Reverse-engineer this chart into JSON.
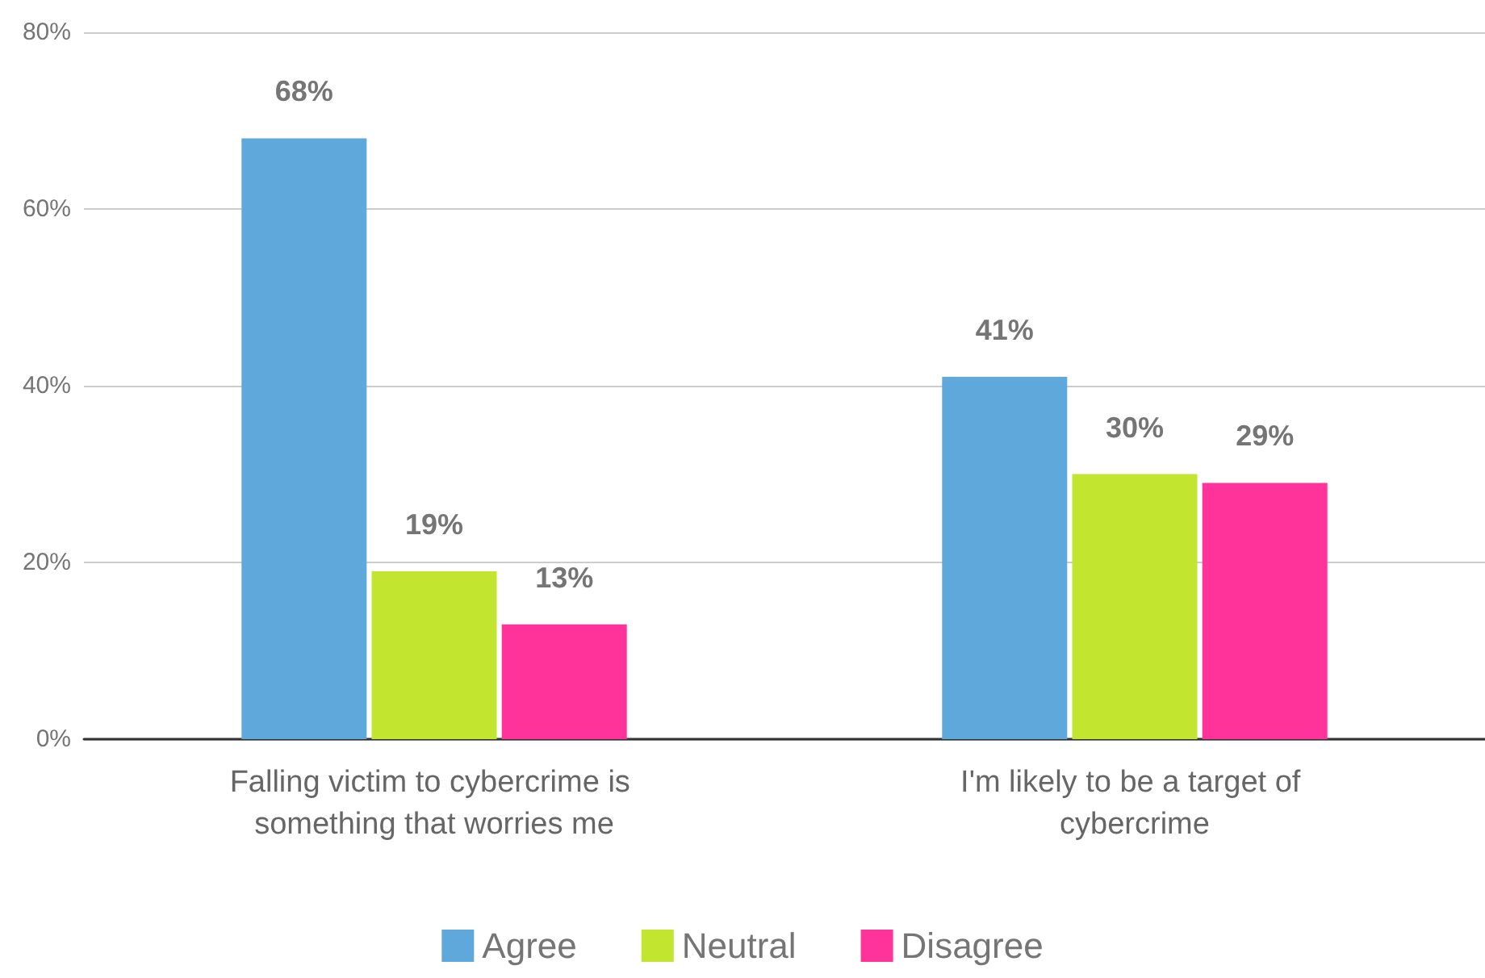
{
  "chart_data": {
    "type": "bar",
    "categories": [
      "Falling victim to cybercrime is something that worries me",
      "I'm likely to be a target of cybercrime"
    ],
    "series": [
      {
        "name": "Agree",
        "color": "#5ea8dc",
        "values": [
          68,
          41
        ],
        "value_labels": [
          "68%",
          "41%"
        ]
      },
      {
        "name": "Neutral",
        "color": "#c2e530",
        "values": [
          19,
          30
        ],
        "value_labels": [
          "19%",
          "30%"
        ]
      },
      {
        "name": "Disagree",
        "color": "#ff3399",
        "values": [
          13,
          29
        ],
        "value_labels": [
          "13%",
          "29%"
        ]
      }
    ],
    "ylim": [
      0,
      80
    ],
    "yticks": [
      {
        "value": 0,
        "label": "0%"
      },
      {
        "value": 20,
        "label": "20%"
      },
      {
        "value": 40,
        "label": "40%"
      },
      {
        "value": 60,
        "label": "60%"
      },
      {
        "value": 80,
        "label": "80%"
      }
    ],
    "grid": "y",
    "legend": "bottom"
  }
}
